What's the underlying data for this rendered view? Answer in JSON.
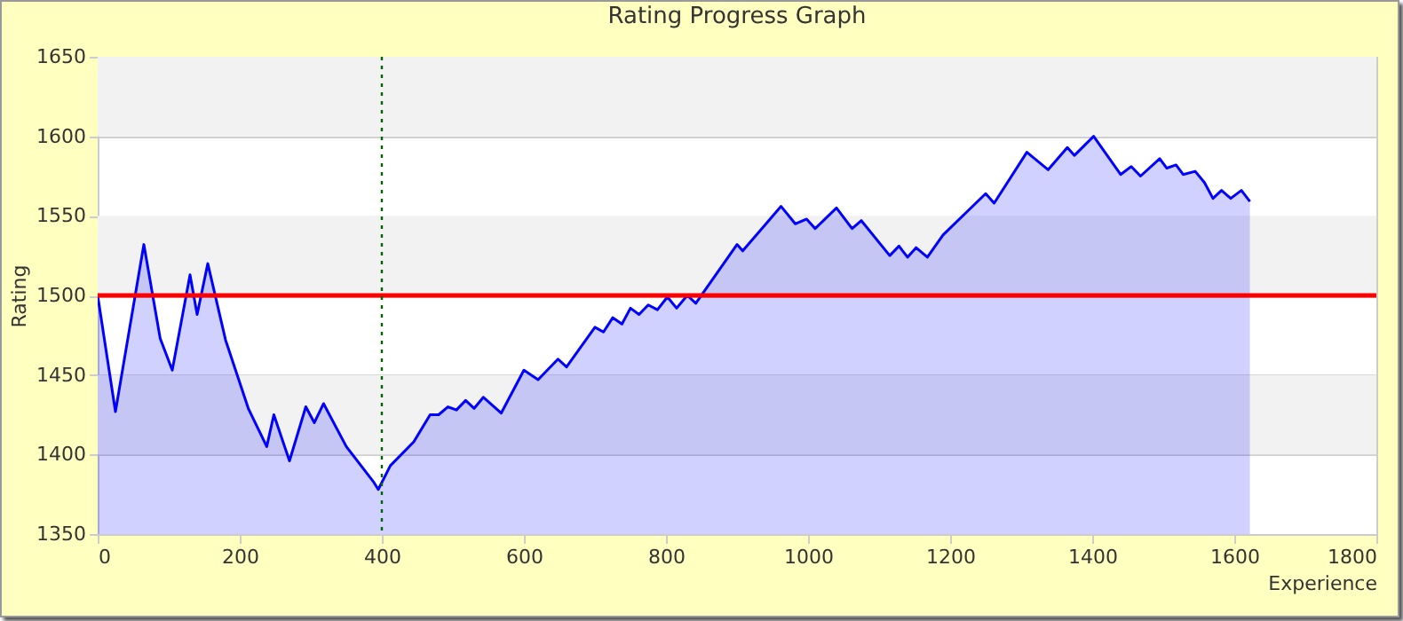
{
  "chart_data": {
    "type": "area",
    "title": "Rating Progress Graph",
    "xlabel": "Experience",
    "ylabel": "Rating",
    "x": [
      0,
      25,
      65,
      88,
      105,
      130,
      140,
      155,
      180,
      212,
      238,
      248,
      270,
      293,
      305,
      318,
      350,
      388,
      395,
      412,
      445,
      468,
      480,
      493,
      505,
      518,
      530,
      543,
      568,
      600,
      620,
      648,
      660,
      700,
      712,
      725,
      738,
      750,
      762,
      775,
      788,
      802,
      815,
      830,
      842,
      900,
      908,
      962,
      982,
      998,
      1010,
      1040,
      1062,
      1075,
      1115,
      1128,
      1140,
      1152,
      1168,
      1190,
      1250,
      1262,
      1308,
      1338,
      1365,
      1375,
      1402,
      1440,
      1455,
      1468,
      1495,
      1505,
      1518,
      1528,
      1545,
      1558,
      1570,
      1582,
      1595,
      1610,
      1622
    ],
    "series": [
      {
        "color": "#0000ff",
        "values": [
          1500,
          1427,
          1532,
          1473,
          1453,
          1513,
          1488,
          1520,
          1472,
          1429,
          1405,
          1425,
          1396,
          1430,
          1420,
          1432,
          1405,
          1383,
          1378,
          1393,
          1408,
          1425,
          1425,
          1430,
          1428,
          1434,
          1429,
          1436,
          1426,
          1453,
          1447,
          1460,
          1455,
          1480,
          1477,
          1486,
          1482,
          1492,
          1488,
          1494,
          1491,
          1499,
          1492,
          1500,
          1495,
          1532,
          1528,
          1556,
          1545,
          1548,
          1542,
          1555,
          1542,
          1547,
          1525,
          1531,
          1524,
          1530,
          1524,
          1538,
          1564,
          1558,
          1590,
          1579,
          1593,
          1588,
          1600,
          1576,
          1581,
          1575,
          1586,
          1580,
          1582,
          1576,
          1578,
          1571,
          1561,
          1566,
          1561,
          1566,
          1559
        ]
      }
    ],
    "xlim": [
      0,
      1800
    ],
    "xticks": [
      0,
      200,
      400,
      600,
      800,
      1000,
      1200,
      1400,
      1600,
      1800
    ],
    "ylim": [
      1350,
      1650
    ],
    "yticks": [
      1350,
      1400,
      1450,
      1500,
      1550,
      1600,
      1650
    ],
    "grid": "y",
    "marker": "none",
    "line_style": "solid",
    "bands": [
      {
        "axis": "y",
        "from": 1400,
        "to": 1450,
        "color": "#f2f2f2"
      },
      {
        "axis": "y",
        "from": 1500,
        "to": 1550,
        "color": "#f2f2f2"
      },
      {
        "axis": "y",
        "from": 1600,
        "to": 1650,
        "color": "#f2f2f2"
      }
    ],
    "ref_lines": [
      {
        "axis": "y",
        "value": 1500,
        "color": "#ff0000",
        "line_style": "solid"
      },
      {
        "axis": "x",
        "value": 400,
        "color": "#006600",
        "line_style": "dotted"
      }
    ]
  }
}
